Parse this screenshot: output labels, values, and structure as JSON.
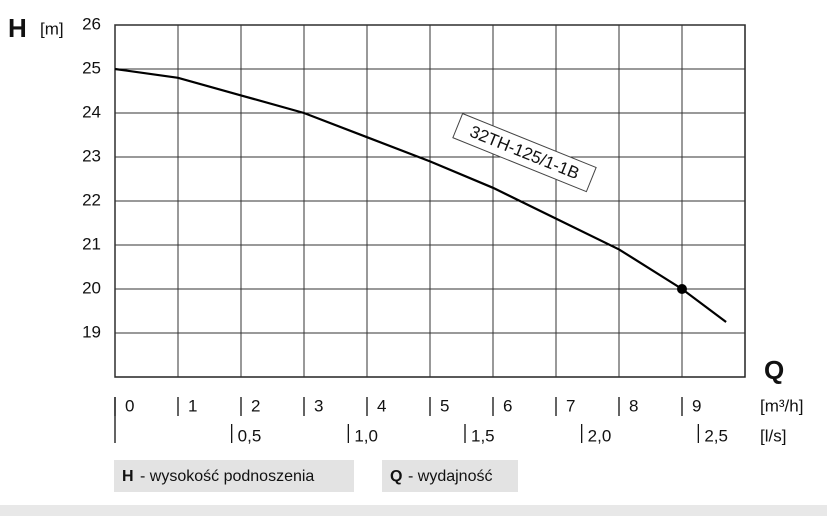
{
  "chart_data": {
    "type": "line",
    "y_label_symbol": "H",
    "y_label_unit": "[m]",
    "x_label_symbol": "Q",
    "x_label_unit": "[m³/h]",
    "x2_label_unit": "[l/s]",
    "series": [
      {
        "name": "32TH-125/1-1B",
        "color": "#000000",
        "x": [
          0,
          1,
          2,
          3,
          4,
          5,
          6,
          7,
          8,
          9,
          9.7
        ],
        "values": [
          25,
          24.8,
          24.4,
          24.0,
          23.45,
          22.9,
          22.3,
          21.6,
          20.9,
          20.0,
          19.25
        ]
      }
    ],
    "operating_point": {
      "x": 9,
      "y": 20
    },
    "xlim": [
      0,
      10
    ],
    "xticks": [
      0,
      1,
      2,
      3,
      4,
      5,
      6,
      7,
      8,
      9
    ],
    "x2lim": [
      0,
      2.7
    ],
    "x2ticks": [
      {
        "value": 0.5,
        "label": "0,5"
      },
      {
        "value": 1,
        "label": "1,0"
      },
      {
        "value": 1.5,
        "label": "1,5"
      },
      {
        "value": 2,
        "label": "2,0"
      },
      {
        "value": 2.5,
        "label": "2,5"
      }
    ],
    "ylim": [
      18,
      26
    ],
    "yticks": [
      19,
      20,
      21,
      22,
      23,
      24,
      25,
      26
    ],
    "grid": true,
    "legend_notes": [
      {
        "symbol": "H",
        "text": "- wysokość podnoszenia"
      },
      {
        "symbol": "Q",
        "text": "- wydajność"
      }
    ]
  }
}
